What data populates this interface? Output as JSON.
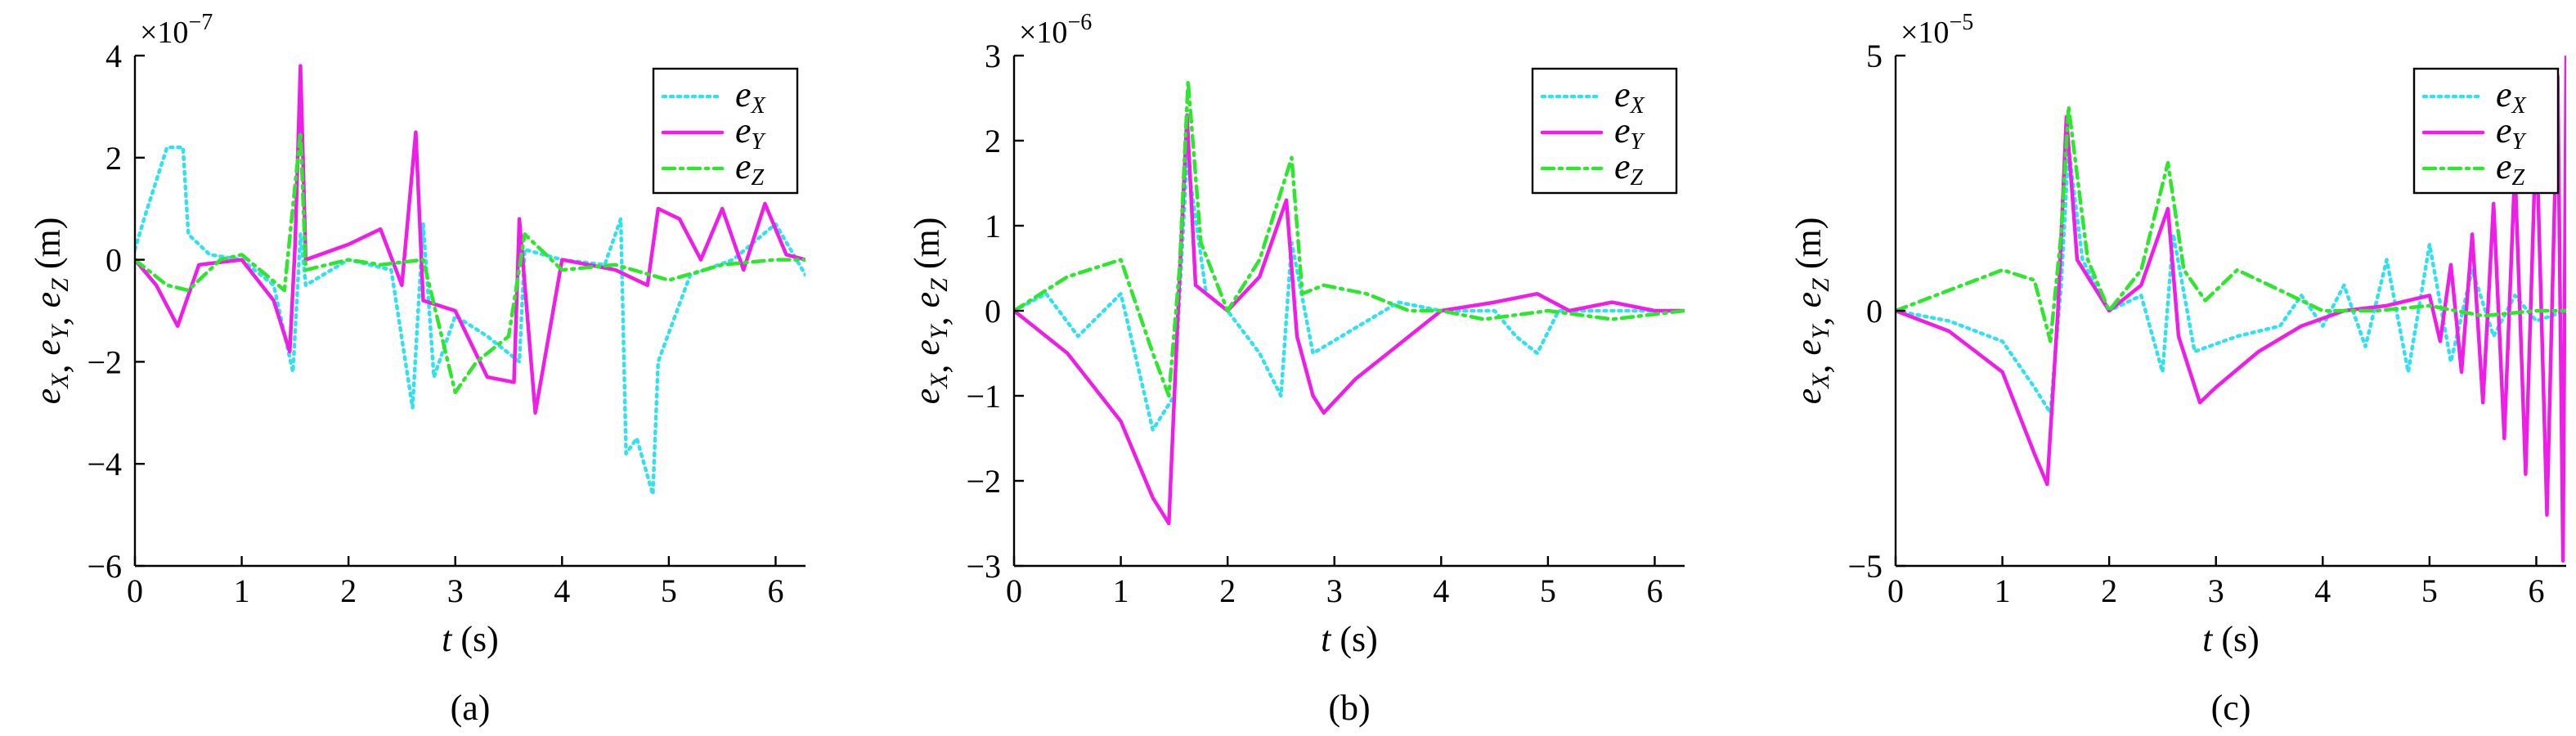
{
  "colors": {
    "eX": "#33e0f0",
    "eY": "#ee1ee6",
    "eZ": "#2ee62e"
  },
  "legend_items": [
    {
      "key": "eX",
      "base": "e",
      "sub": "X",
      "dash": "3,6"
    },
    {
      "key": "eY",
      "base": "e",
      "sub": "Y",
      "dash": ""
    },
    {
      "key": "eZ",
      "base": "e",
      "sub": "Z",
      "dash": "14,7,3,7"
    }
  ],
  "chart_data": [
    {
      "type": "line",
      "panel_label": "(a)",
      "xlabel": {
        "var": "t",
        "unit": " (s)"
      },
      "ylabel": {
        "prefix": "e",
        "subs": [
          "X",
          "Y",
          "Z"
        ],
        "unit": " (m)"
      },
      "multiplier": {
        "text": "×10",
        "exp": "−7"
      },
      "xlim": [
        0,
        6.28
      ],
      "ylim": [
        -6,
        4
      ],
      "xticks": [
        "0",
        "1",
        "2",
        "3",
        "4",
        "5",
        "6"
      ],
      "yticks": [
        "−6",
        "−4",
        "−2",
        "0",
        "2",
        "4"
      ],
      "series": [
        {
          "key": "eX",
          "points": [
            [
              0,
              0.2
            ],
            [
              0.1,
              0.9
            ],
            [
              0.3,
              2.2
            ],
            [
              0.45,
              2.2
            ],
            [
              0.5,
              0.5
            ],
            [
              0.7,
              0.1
            ],
            [
              1,
              0
            ],
            [
              1.3,
              -0.5
            ],
            [
              1.48,
              -2.2
            ],
            [
              1.55,
              0.5
            ],
            [
              1.6,
              -0.5
            ],
            [
              2,
              0
            ],
            [
              2.4,
              -0.2
            ],
            [
              2.6,
              -2.9
            ],
            [
              2.7,
              0.7
            ],
            [
              2.8,
              -2.3
            ],
            [
              3,
              -1.1
            ],
            [
              3.3,
              -1.5
            ],
            [
              3.6,
              -2.0
            ],
            [
              3.65,
              0.2
            ],
            [
              4,
              0
            ],
            [
              4.4,
              -0.1
            ],
            [
              4.55,
              0.8
            ],
            [
              4.6,
              -3.8
            ],
            [
              4.7,
              -3.5
            ],
            [
              4.85,
              -4.6
            ],
            [
              4.9,
              -2.0
            ],
            [
              5.2,
              -0.3
            ],
            [
              5.6,
              0
            ],
            [
              6,
              0.7
            ],
            [
              6.28,
              -0.3
            ]
          ]
        },
        {
          "key": "eY",
          "points": [
            [
              0,
              0
            ],
            [
              0.2,
              -0.5
            ],
            [
              0.4,
              -1.3
            ],
            [
              0.6,
              -0.1
            ],
            [
              1,
              0
            ],
            [
              1.3,
              -0.8
            ],
            [
              1.45,
              -1.8
            ],
            [
              1.5,
              0.3
            ],
            [
              1.55,
              3.8
            ],
            [
              1.6,
              0
            ],
            [
              2,
              0.3
            ],
            [
              2.3,
              0.6
            ],
            [
              2.5,
              -0.5
            ],
            [
              2.63,
              2.5
            ],
            [
              2.7,
              -0.8
            ],
            [
              3,
              -1.0
            ],
            [
              3.3,
              -2.3
            ],
            [
              3.55,
              -2.4
            ],
            [
              3.6,
              0.8
            ],
            [
              3.75,
              -3.0
            ],
            [
              4,
              0
            ],
            [
              4.5,
              -0.2
            ],
            [
              4.8,
              -0.5
            ],
            [
              4.9,
              1.0
            ],
            [
              5.1,
              0.8
            ],
            [
              5.3,
              0
            ],
            [
              5.5,
              1.0
            ],
            [
              5.7,
              -0.2
            ],
            [
              5.9,
              1.1
            ],
            [
              6.1,
              0.1
            ],
            [
              6.28,
              0
            ]
          ]
        },
        {
          "key": "eZ",
          "points": [
            [
              0,
              0
            ],
            [
              0.3,
              -0.5
            ],
            [
              0.5,
              -0.6
            ],
            [
              0.8,
              0
            ],
            [
              1,
              0.1
            ],
            [
              1.4,
              -0.6
            ],
            [
              1.55,
              2.5
            ],
            [
              1.6,
              -0.2
            ],
            [
              2,
              0
            ],
            [
              2.3,
              -0.1
            ],
            [
              2.7,
              0
            ],
            [
              3,
              -2.6
            ],
            [
              3.2,
              -2.0
            ],
            [
              3.5,
              -1.5
            ],
            [
              3.65,
              0.5
            ],
            [
              4,
              -0.2
            ],
            [
              4.5,
              -0.1
            ],
            [
              5,
              -0.4
            ],
            [
              5.5,
              -0.1
            ],
            [
              6,
              0
            ],
            [
              6.28,
              0
            ]
          ]
        }
      ]
    },
    {
      "type": "line",
      "panel_label": "(b)",
      "xlabel": {
        "var": "t",
        "unit": " (s)"
      },
      "ylabel": {
        "prefix": "e",
        "subs": [
          "X",
          "Y",
          "Z"
        ],
        "unit": " (m)"
      },
      "multiplier": {
        "text": "×10",
        "exp": "−6"
      },
      "xlim": [
        0,
        6.28
      ],
      "ylim": [
        -3,
        3
      ],
      "xticks": [
        "0",
        "1",
        "2",
        "3",
        "4",
        "5",
        "6"
      ],
      "yticks": [
        "−3",
        "−2",
        "−1",
        "0",
        "1",
        "2",
        "3"
      ],
      "series": [
        {
          "key": "eX",
          "points": [
            [
              0,
              0
            ],
            [
              0.3,
              0.2
            ],
            [
              0.6,
              -0.3
            ],
            [
              1,
              0.2
            ],
            [
              1.3,
              -1.4
            ],
            [
              1.5,
              -1.0
            ],
            [
              1.62,
              1.8
            ],
            [
              1.8,
              0.2
            ],
            [
              2,
              0
            ],
            [
              2.3,
              -0.5
            ],
            [
              2.5,
              -1.0
            ],
            [
              2.6,
              0.8
            ],
            [
              2.8,
              -0.5
            ],
            [
              3.2,
              -0.2
            ],
            [
              3.6,
              0.1
            ],
            [
              4,
              0
            ],
            [
              4.5,
              0
            ],
            [
              4.7,
              -0.3
            ],
            [
              4.9,
              -0.5
            ],
            [
              5.1,
              0
            ],
            [
              5.5,
              0
            ],
            [
              6,
              0
            ],
            [
              6.28,
              0
            ]
          ]
        },
        {
          "key": "eY",
          "points": [
            [
              0,
              0
            ],
            [
              0.5,
              -0.5
            ],
            [
              1,
              -1.3
            ],
            [
              1.3,
              -2.2
            ],
            [
              1.45,
              -2.5
            ],
            [
              1.55,
              0.4
            ],
            [
              1.62,
              2.3
            ],
            [
              1.7,
              0.3
            ],
            [
              2,
              0
            ],
            [
              2.3,
              0.4
            ],
            [
              2.55,
              1.3
            ],
            [
              2.65,
              -0.3
            ],
            [
              2.8,
              -1.0
            ],
            [
              2.9,
              -1.2
            ],
            [
              3.2,
              -0.8
            ],
            [
              3.6,
              -0.4
            ],
            [
              4,
              0
            ],
            [
              4.5,
              0.1
            ],
            [
              4.9,
              0.2
            ],
            [
              5.2,
              0
            ],
            [
              5.6,
              0.1
            ],
            [
              6,
              0
            ],
            [
              6.28,
              0
            ]
          ]
        },
        {
          "key": "eZ",
          "points": [
            [
              0,
              0
            ],
            [
              0.5,
              0.4
            ],
            [
              1,
              0.6
            ],
            [
              1.3,
              -0.5
            ],
            [
              1.45,
              -1.0
            ],
            [
              1.55,
              0.5
            ],
            [
              1.63,
              2.7
            ],
            [
              1.75,
              0.8
            ],
            [
              2,
              0
            ],
            [
              2.3,
              0.6
            ],
            [
              2.6,
              1.8
            ],
            [
              2.7,
              0.2
            ],
            [
              2.9,
              0.3
            ],
            [
              3.3,
              0.2
            ],
            [
              3.7,
              0
            ],
            [
              4,
              0
            ],
            [
              4.4,
              -0.1
            ],
            [
              5,
              0
            ],
            [
              5.6,
              -0.1
            ],
            [
              6.28,
              0
            ]
          ]
        }
      ]
    },
    {
      "type": "line",
      "panel_label": "(c)",
      "xlabel": {
        "var": "t",
        "unit": " (s)"
      },
      "ylabel": {
        "prefix": "e",
        "subs": [
          "X",
          "Y",
          "Z"
        ],
        "unit": " (m)"
      },
      "multiplier": {
        "text": "×10",
        "exp": "−5"
      },
      "xlim": [
        0,
        6.28
      ],
      "ylim": [
        -5,
        5
      ],
      "xticks": [
        "0",
        "1",
        "2",
        "3",
        "4",
        "5",
        "6"
      ],
      "yticks": [
        "−5",
        "0",
        "5"
      ],
      "series": [
        {
          "key": "eX",
          "points": [
            [
              0,
              0
            ],
            [
              0.5,
              -0.2
            ],
            [
              1,
              -0.6
            ],
            [
              1.3,
              -1.5
            ],
            [
              1.45,
              -2.0
            ],
            [
              1.55,
              0.5
            ],
            [
              1.62,
              3.2
            ],
            [
              1.75,
              1.0
            ],
            [
              2,
              0
            ],
            [
              2.3,
              0.3
            ],
            [
              2.5,
              -1.2
            ],
            [
              2.6,
              1.5
            ],
            [
              2.8,
              -0.8
            ],
            [
              3.2,
              -0.5
            ],
            [
              3.6,
              -0.3
            ],
            [
              3.8,
              0.3
            ],
            [
              4,
              -0.3
            ],
            [
              4.2,
              0.5
            ],
            [
              4.4,
              -0.7
            ],
            [
              4.6,
              1.0
            ],
            [
              4.8,
              -1.2
            ],
            [
              5,
              1.3
            ],
            [
              5.2,
              -1.0
            ],
            [
              5.4,
              0.8
            ],
            [
              5.6,
              -0.5
            ],
            [
              5.8,
              0.3
            ],
            [
              6,
              -0.2
            ],
            [
              6.28,
              0
            ]
          ]
        },
        {
          "key": "eY",
          "points": [
            [
              0,
              0
            ],
            [
              0.5,
              -0.4
            ],
            [
              1,
              -1.2
            ],
            [
              1.3,
              -2.8
            ],
            [
              1.42,
              -3.4
            ],
            [
              1.52,
              0
            ],
            [
              1.6,
              3.8
            ],
            [
              1.7,
              1.0
            ],
            [
              2,
              0
            ],
            [
              2.3,
              0.5
            ],
            [
              2.55,
              2.0
            ],
            [
              2.65,
              -0.5
            ],
            [
              2.85,
              -1.8
            ],
            [
              3,
              -1.5
            ],
            [
              3.4,
              -0.8
            ],
            [
              3.8,
              -0.3
            ],
            [
              4.2,
              0
            ],
            [
              4.6,
              0.1
            ],
            [
              5,
              0.3
            ],
            [
              5.1,
              -0.6
            ],
            [
              5.2,
              0.9
            ],
            [
              5.3,
              -1.2
            ],
            [
              5.4,
              1.5
            ],
            [
              5.5,
              -1.8
            ],
            [
              5.6,
              2.1
            ],
            [
              5.7,
              -2.5
            ],
            [
              5.8,
              2.8
            ],
            [
              5.9,
              -3.2
            ],
            [
              6.0,
              3.6
            ],
            [
              6.1,
              -4.0
            ],
            [
              6.2,
              4.6
            ],
            [
              6.25,
              -4.9
            ],
            [
              6.28,
              5.0
            ]
          ]
        },
        {
          "key": "eZ",
          "points": [
            [
              0,
              0
            ],
            [
              0.5,
              0.4
            ],
            [
              1,
              0.8
            ],
            [
              1.3,
              0.6
            ],
            [
              1.45,
              -0.6
            ],
            [
              1.55,
              1.5
            ],
            [
              1.62,
              4.0
            ],
            [
              1.8,
              1.0
            ],
            [
              2,
              0
            ],
            [
              2.3,
              0.8
            ],
            [
              2.55,
              2.9
            ],
            [
              2.7,
              0.8
            ],
            [
              2.9,
              0.2
            ],
            [
              3.2,
              0.8
            ],
            [
              3.6,
              0.4
            ],
            [
              4,
              0
            ],
            [
              4.5,
              0
            ],
            [
              5,
              0.1
            ],
            [
              5.5,
              -0.1
            ],
            [
              6,
              0
            ],
            [
              6.28,
              0
            ]
          ]
        }
      ]
    }
  ]
}
